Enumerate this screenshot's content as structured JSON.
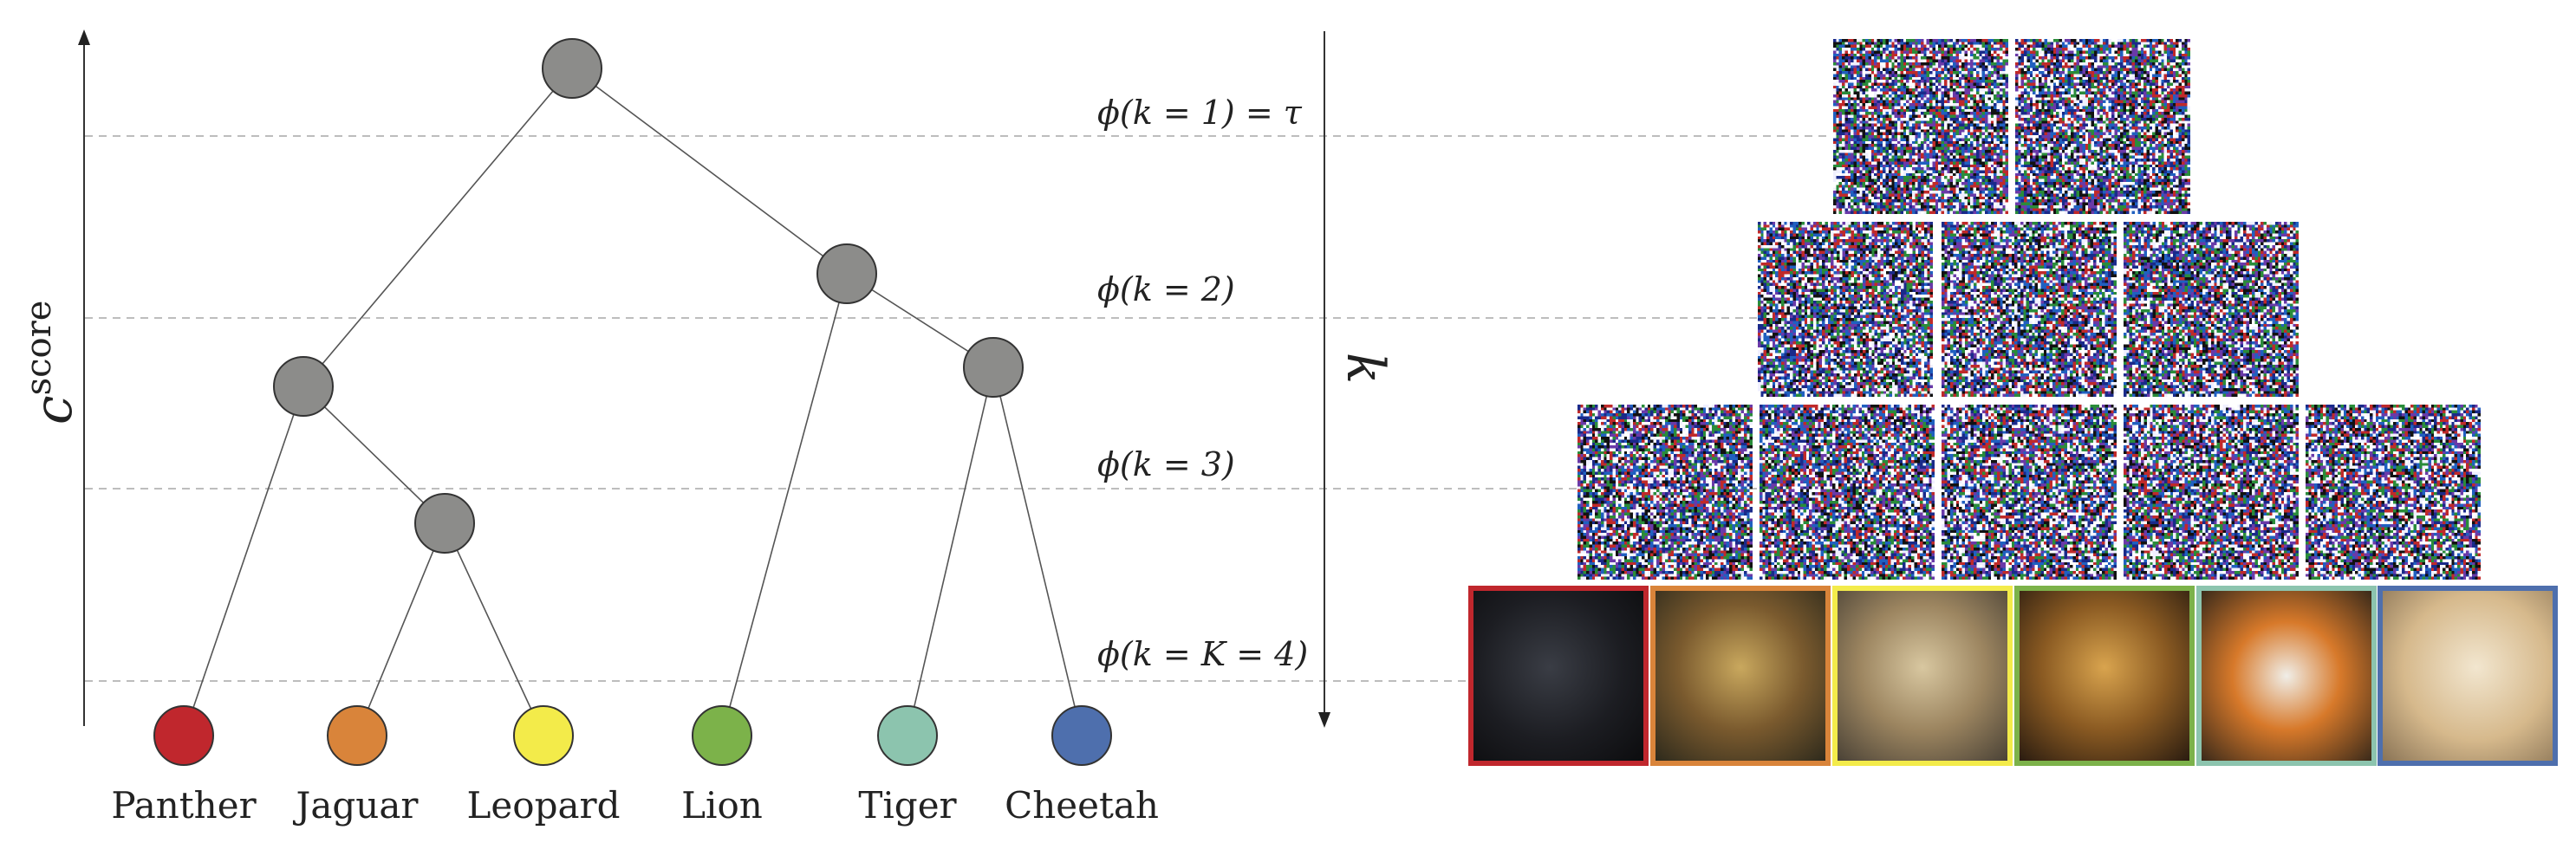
{
  "y_axis": {
    "label": "c",
    "superscript": "score"
  },
  "k_axis": {
    "label": "k"
  },
  "levels": [
    {
      "label": "ϕ(k = 1) = τ"
    },
    {
      "label": "ϕ(k = 2)"
    },
    {
      "label": "ϕ(k = 3)"
    },
    {
      "label": "ϕ(k = K = 4)"
    }
  ],
  "tree": {
    "internal_node_color": "#8c8c8a",
    "leaves": [
      {
        "name": "Panther",
        "color": "#c0272d"
      },
      {
        "name": "Jaguar",
        "color": "#d9843a"
      },
      {
        "name": "Leopard",
        "color": "#f3eb4a"
      },
      {
        "name": "Lion",
        "color": "#7cb24a"
      },
      {
        "name": "Tiger",
        "color": "#8cc4ae"
      },
      {
        "name": "Cheetah",
        "color": "#4e6fad"
      }
    ]
  },
  "image_grid": {
    "rows": [
      {
        "level": 1,
        "tiles": 2
      },
      {
        "level": 2,
        "tiles": 3
      },
      {
        "level": 3,
        "tiles": 5
      },
      {
        "level": 4,
        "tiles": 6
      }
    ],
    "final_images": [
      {
        "animal": "Panther",
        "frame_color": "#c0272d"
      },
      {
        "animal": "Jaguar",
        "frame_color": "#d9843a"
      },
      {
        "animal": "Leopard",
        "frame_color": "#f3eb4a"
      },
      {
        "animal": "Lion",
        "frame_color": "#7cb24a"
      },
      {
        "animal": "Tiger",
        "frame_color": "#8cc4ae"
      },
      {
        "animal": "Cheetah",
        "frame_color": "#4e6fad"
      }
    ]
  }
}
